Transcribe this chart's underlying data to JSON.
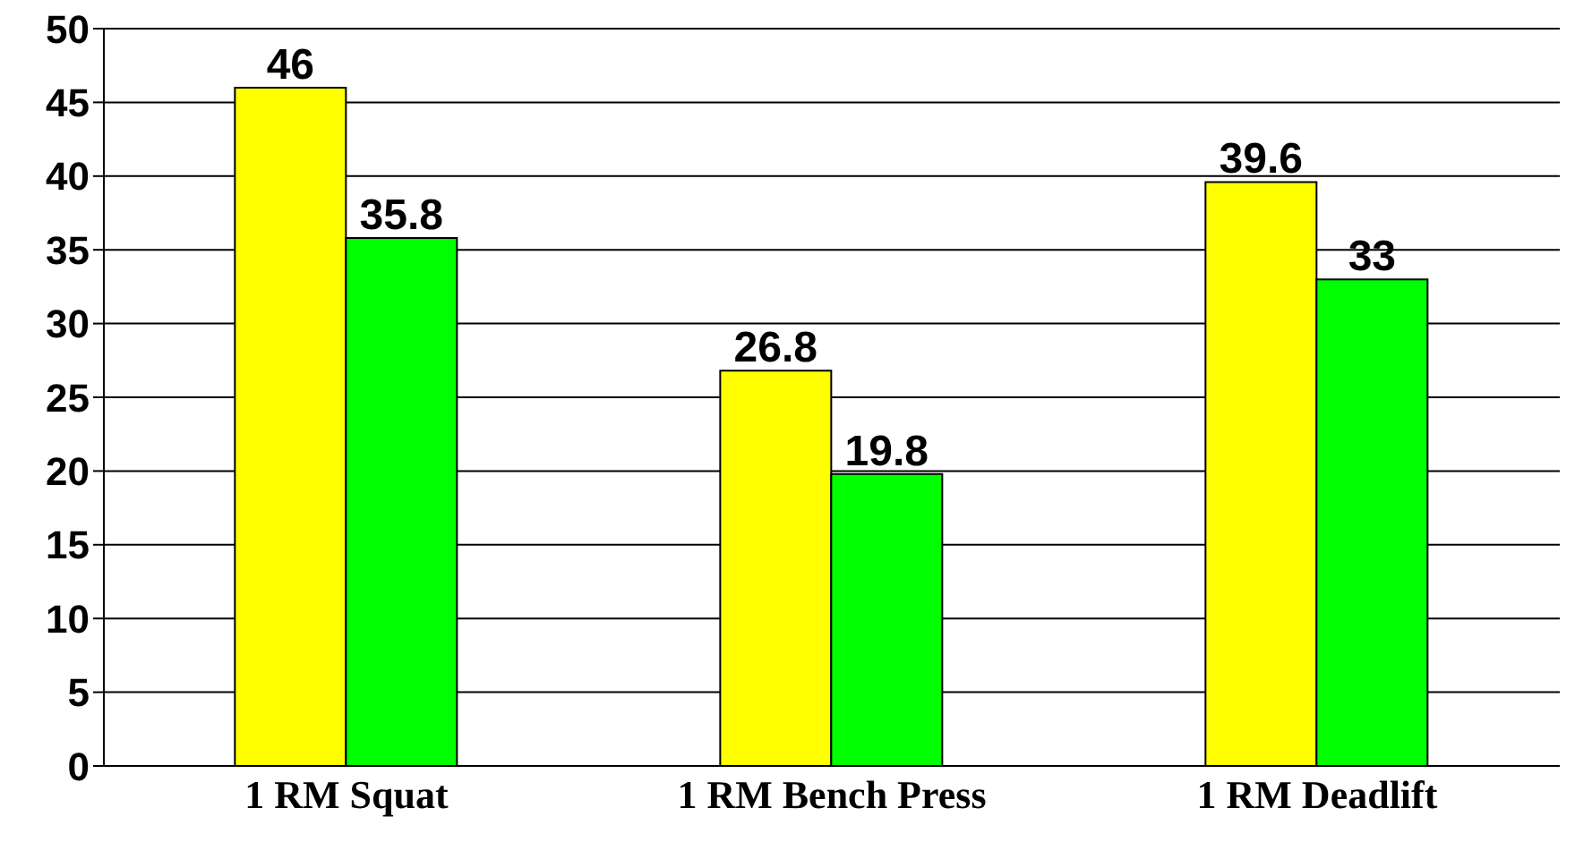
{
  "chart_data": {
    "type": "bar",
    "categories": [
      "1 RM Squat",
      "1 RM Bench Press",
      "1 RM Deadlift"
    ],
    "series": [
      {
        "color": "#ffff00",
        "values": [
          46,
          26.8,
          39.6
        ]
      },
      {
        "color": "#00ff00",
        "values": [
          35.8,
          19.8,
          33
        ]
      }
    ],
    "ylim": [
      0,
      50
    ],
    "yticks": [
      0,
      5,
      10,
      15,
      20,
      25,
      30,
      35,
      40,
      45,
      50
    ],
    "grid": "y",
    "data_labels": true
  }
}
